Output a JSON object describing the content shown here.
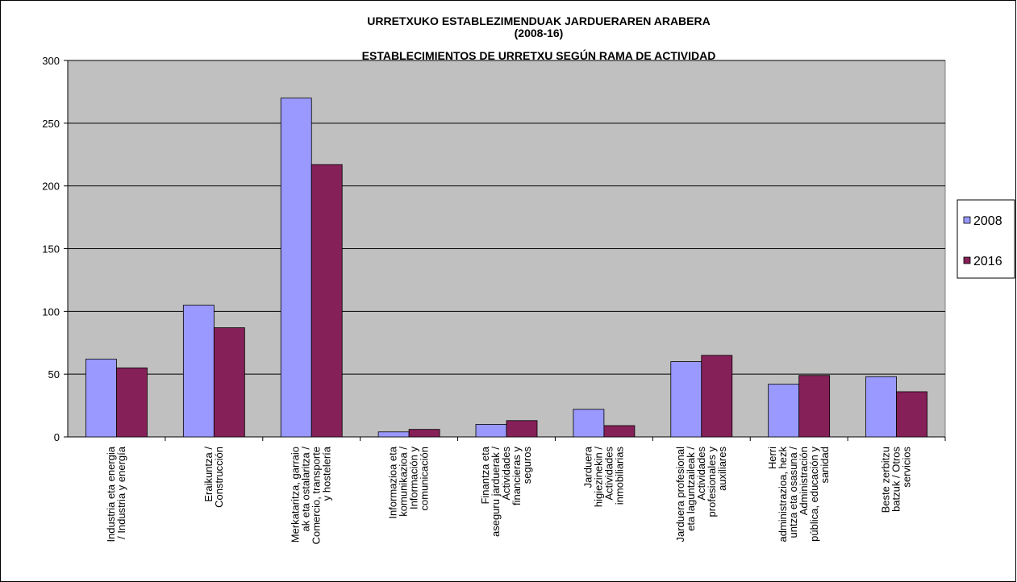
{
  "chart_data": {
    "type": "bar",
    "title": [
      "URRETXUKO ESTABLEZIMENDUAK JARDUERAREN ARABERA",
      "(2008-16)",
      "ESTABLECIMIENTOS DE URRETXU SEGÚN RAMA DE ACTIVIDAD"
    ],
    "categories": [
      "Industria eta energia\n/ Industria y energía",
      "Eraikuntza /\nConstrucción",
      "Merkataritza, garraio\nak eta ostalaritza /\nComercio, transporte\ny hostelería",
      "Informazioa eta\nkomunikazioa /\nInformación y\ncomunicación",
      "Finantza eta\naseguru jarduerak /\nActividades\nfinancieras y\nseguros",
      "Jarduera\nhigiezinekin /\nActividades\ninmobiliarias",
      "Jarduera profesional\neta laguntzaileak /\nActividades\nprofesionales y\nauxiliares",
      "Herri\nadministrazioa, hezk\nuntza eta osasuna /\nAdministración\npública, educación y\nsanidad",
      "Beste zerbitzu\nbatzuk / Otros\nservicios"
    ],
    "series": [
      {
        "name": "2008",
        "color": "#9999ff",
        "values": [
          62,
          105,
          270,
          4,
          10,
          22,
          60,
          42,
          48
        ]
      },
      {
        "name": "2016",
        "color": "#862058",
        "values": [
          55,
          87,
          217,
          6,
          13,
          9,
          65,
          49,
          36
        ]
      }
    ],
    "ylim": [
      0,
      300
    ],
    "yticks": [
      0,
      50,
      100,
      150,
      200,
      250,
      300
    ],
    "grid": true,
    "legend": "right"
  }
}
